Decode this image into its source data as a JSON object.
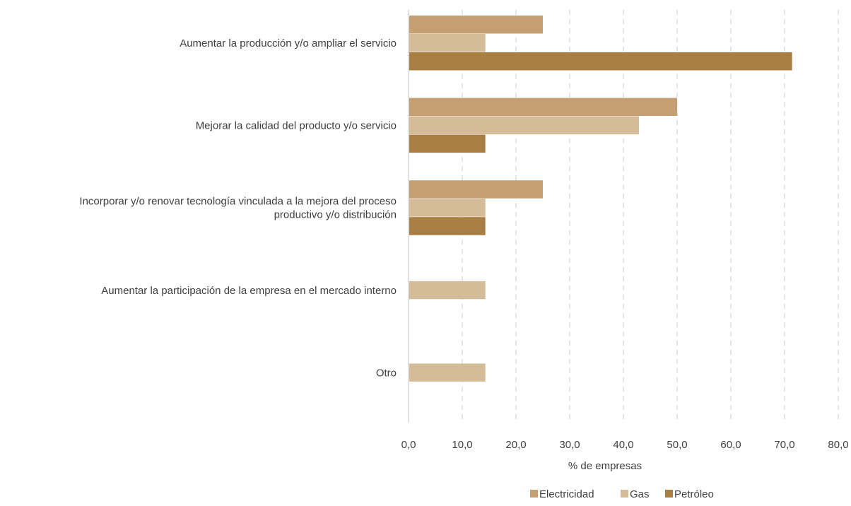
{
  "chart_data": {
    "type": "bar",
    "orientation": "horizontal",
    "title": "",
    "xlabel": "% de empresas",
    "ylabel": "",
    "xlim": [
      0,
      80
    ],
    "x_ticks": [
      "0,0",
      "10,0",
      "20,0",
      "30,0",
      "40,0",
      "50,0",
      "60,0",
      "70,0",
      "80,0"
    ],
    "grid": "vertical dashed",
    "legend_position": "bottom",
    "categories": [
      [
        "Aumentar la producción y/o ampliar el servicio"
      ],
      [
        "Mejorar la calidad del producto y/o servicio"
      ],
      [
        "Incorporar y/o renovar tecnología vinculada a la mejora del proceso",
        "productivo y/o distribución"
      ],
      [
        "Aumentar la participación de la empresa en el mercado interno"
      ],
      [
        "Otro"
      ]
    ],
    "series": [
      {
        "name": "Electricidad",
        "color": "#c49f72",
        "values": [
          25.0,
          50.0,
          25.0,
          null,
          null
        ]
      },
      {
        "name": "Gas",
        "color": "#d5bc98",
        "values": [
          14.3,
          42.9,
          14.3,
          14.3,
          14.3
        ]
      },
      {
        "name": "Petróleo",
        "color": "#a97e42",
        "values": [
          71.4,
          14.3,
          14.3,
          null,
          null
        ]
      }
    ]
  }
}
